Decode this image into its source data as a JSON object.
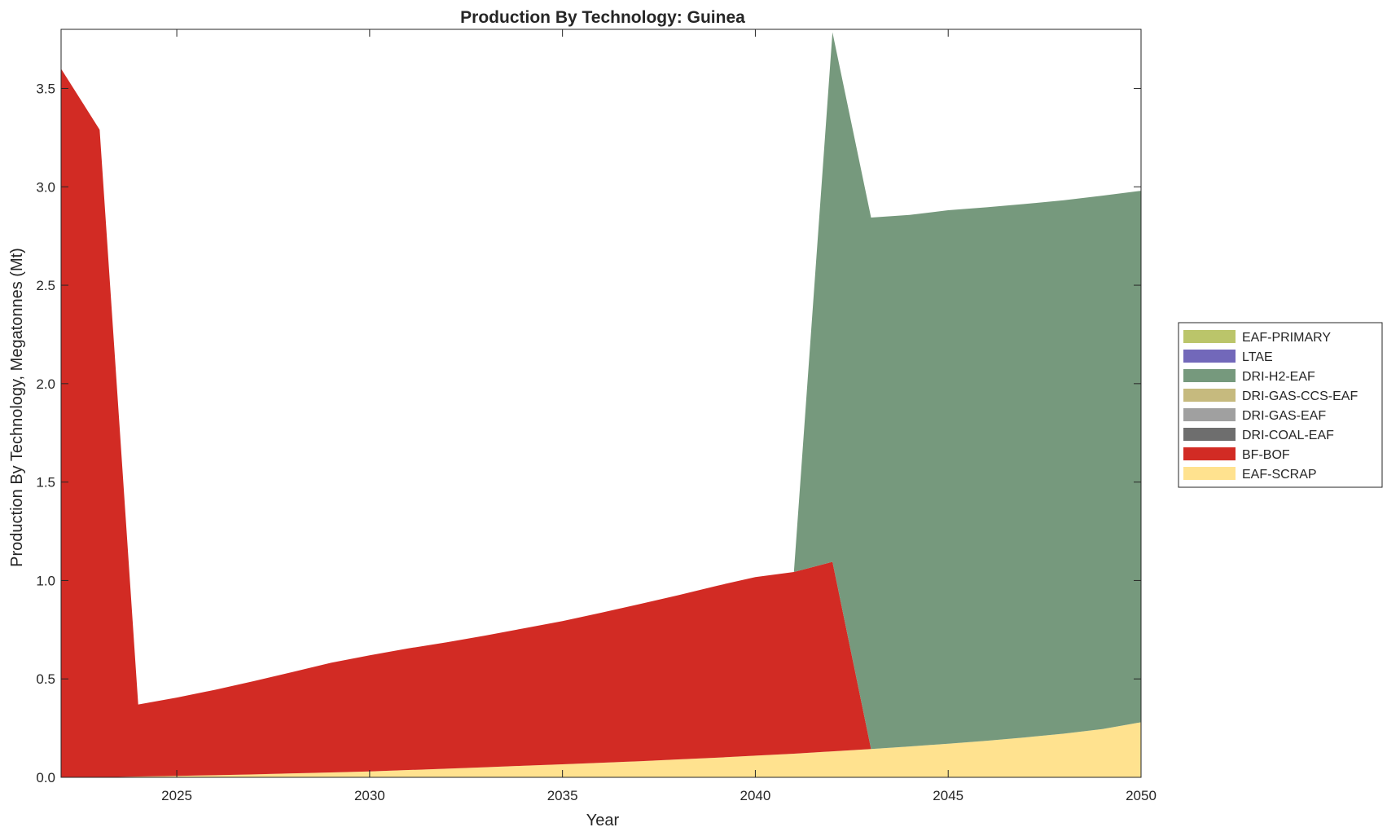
{
  "chart_data": {
    "type": "area",
    "stacked": true,
    "title": "Production By Technology: Guinea",
    "xlabel": "Year",
    "ylabel": "Production By Technology, Megatonnes (Mt)",
    "xlim": [
      2022,
      2050
    ],
    "ylim": [
      0,
      3.8
    ],
    "xticks": [
      2025,
      2030,
      2035,
      2040,
      2045,
      2050
    ],
    "xtick_labels": [
      "2025",
      "2030",
      "2035",
      "2040",
      "2045",
      "2050"
    ],
    "yticks": [
      0,
      0.5,
      1,
      1.5,
      2,
      2.5,
      3,
      3.5
    ],
    "ytick_labels": [
      "0.0",
      "0.5",
      "1.0",
      "1.5",
      "2.0",
      "2.5",
      "3.0",
      "3.5"
    ],
    "grid": false,
    "legend_position": "right",
    "x": [
      2022,
      2023,
      2024,
      2025,
      2026,
      2027,
      2028,
      2029,
      2030,
      2031,
      2032,
      2033,
      2034,
      2035,
      2036,
      2037,
      2038,
      2039,
      2040,
      2041,
      2042,
      2043,
      2044,
      2045,
      2046,
      2047,
      2048,
      2049,
      2050
    ],
    "series": [
      {
        "name": "EAF-SCRAP",
        "color": "#FFE28F",
        "values": [
          0.0,
          0.0,
          0.004,
          0.007,
          0.011,
          0.015,
          0.02,
          0.025,
          0.03,
          0.037,
          0.044,
          0.051,
          0.059,
          0.066,
          0.074,
          0.082,
          0.091,
          0.1,
          0.11,
          0.12,
          0.132,
          0.144,
          0.157,
          0.171,
          0.186,
          0.203,
          0.222,
          0.245,
          0.28
        ]
      },
      {
        "name": "BF-BOF",
        "color": "#D22B24",
        "values": [
          3.6,
          3.29,
          0.366,
          0.398,
          0.434,
          0.474,
          0.515,
          0.557,
          0.59,
          0.618,
          0.642,
          0.669,
          0.698,
          0.728,
          0.762,
          0.798,
          0.834,
          0.873,
          0.907,
          0.923,
          0.963,
          0.0,
          0.0,
          0.0,
          0.0,
          0.0,
          0.0,
          0.0,
          0.0
        ]
      },
      {
        "name": "DRI-COAL-EAF",
        "color": "#6E6E6E",
        "values": [
          0,
          0,
          0,
          0,
          0,
          0,
          0,
          0,
          0,
          0,
          0,
          0,
          0,
          0,
          0,
          0,
          0,
          0,
          0,
          0,
          0,
          0,
          0,
          0,
          0,
          0,
          0,
          0,
          0
        ]
      },
      {
        "name": "DRI-GAS-EAF",
        "color": "#A0A0A0",
        "values": [
          0,
          0,
          0,
          0,
          0,
          0,
          0,
          0,
          0,
          0,
          0,
          0,
          0,
          0,
          0,
          0,
          0,
          0,
          0,
          0,
          0,
          0,
          0,
          0,
          0,
          0,
          0,
          0,
          0
        ]
      },
      {
        "name": "DRI-GAS-CCS-EAF",
        "color": "#C6BA7E",
        "values": [
          0,
          0,
          0,
          0,
          0,
          0,
          0,
          0,
          0,
          0,
          0,
          0,
          0,
          0,
          0,
          0,
          0,
          0,
          0,
          0,
          0,
          0,
          0,
          0,
          0,
          0,
          0,
          0,
          0
        ]
      },
      {
        "name": "DRI-H2-EAF",
        "color": "#76997D",
        "values": [
          0,
          0,
          0,
          0,
          0,
          0,
          0,
          0,
          0,
          0,
          0,
          0,
          0,
          0,
          0,
          0,
          0,
          0,
          0,
          0,
          2.69,
          2.7,
          2.7,
          2.71,
          2.71,
          2.71,
          2.71,
          2.71,
          2.7
        ]
      },
      {
        "name": "LTAE",
        "color": "#7268BA",
        "values": [
          0,
          0,
          0,
          0,
          0,
          0,
          0,
          0,
          0,
          0,
          0,
          0,
          0,
          0,
          0,
          0,
          0,
          0,
          0,
          0,
          0,
          0,
          0,
          0,
          0,
          0,
          0,
          0,
          0
        ]
      },
      {
        "name": "EAF-PRIMARY",
        "color": "#BBC56A",
        "values": [
          0,
          0,
          0,
          0,
          0,
          0,
          0,
          0,
          0,
          0,
          0,
          0,
          0,
          0,
          0,
          0,
          0,
          0,
          0,
          0,
          0,
          0,
          0,
          0,
          0,
          0,
          0,
          0,
          0
        ]
      }
    ],
    "legend_order": [
      "EAF-PRIMARY",
      "LTAE",
      "DRI-H2-EAF",
      "DRI-GAS-CCS-EAF",
      "DRI-GAS-EAF",
      "DRI-COAL-EAF",
      "BF-BOF",
      "EAF-SCRAP"
    ]
  }
}
